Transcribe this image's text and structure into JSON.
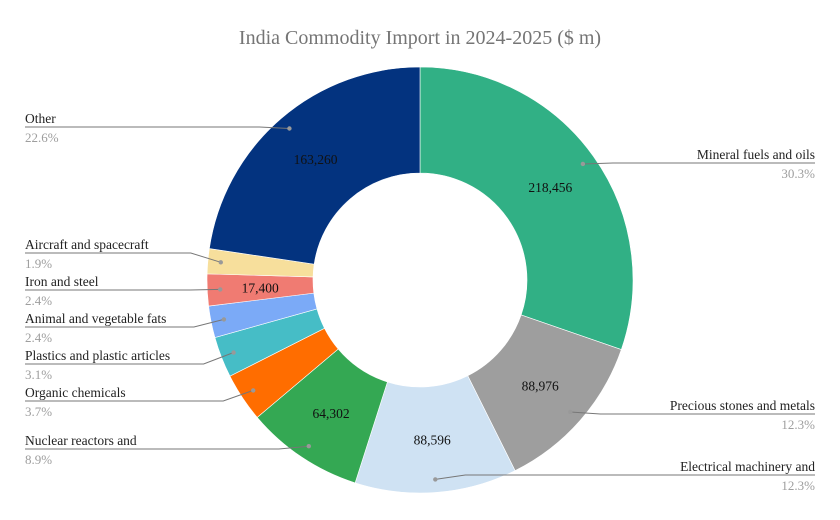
{
  "chart_data": {
    "type": "pie",
    "donut": true,
    "title": "India Commodity Import in 2024-2025 ($ m)",
    "start_angle": "top, clockwise",
    "legend": "none (outside labels)",
    "slices": [
      {
        "label": "Mineral fuels and oils",
        "value": 218456,
        "percent": "30.3%",
        "value_label": "218,456",
        "color": "#31b085"
      },
      {
        "label": "Precious stones and metals",
        "value": 88976,
        "percent": "12.3%",
        "value_label": "88,976",
        "color": "#9e9e9e"
      },
      {
        "label": "Electrical machinery and",
        "value": 88596,
        "percent": "12.3%",
        "value_label": "88,596",
        "color": "#cfe2f3"
      },
      {
        "label": "Nuclear reactors and",
        "value": 64302,
        "percent": "8.9%",
        "value_label": "64,302",
        "color": "#34a853"
      },
      {
        "label": "Organic chemicals",
        "value": 26700,
        "percent": "3.7%",
        "value_label": "",
        "color": "#ff6d00"
      },
      {
        "label": "Plastics and plastic articles",
        "value": 22350,
        "percent": "3.1%",
        "value_label": "",
        "color": "#46bdc6"
      },
      {
        "label": "Animal and vegetable fats",
        "value": 17300,
        "percent": "2.4%",
        "value_label": "",
        "color": "#7baaf7"
      },
      {
        "label": "Iron and steel",
        "value": 17400,
        "percent": "2.4%",
        "value_label": "17,400",
        "color": "#f07b72"
      },
      {
        "label": "Aircraft and spacecraft",
        "value": 13700,
        "percent": "1.9%",
        "value_label": "",
        "color": "#f7df9c"
      },
      {
        "label": "Other",
        "value": 163260,
        "percent": "22.6%",
        "value_label": "163,260",
        "color": "#03337f"
      }
    ]
  }
}
